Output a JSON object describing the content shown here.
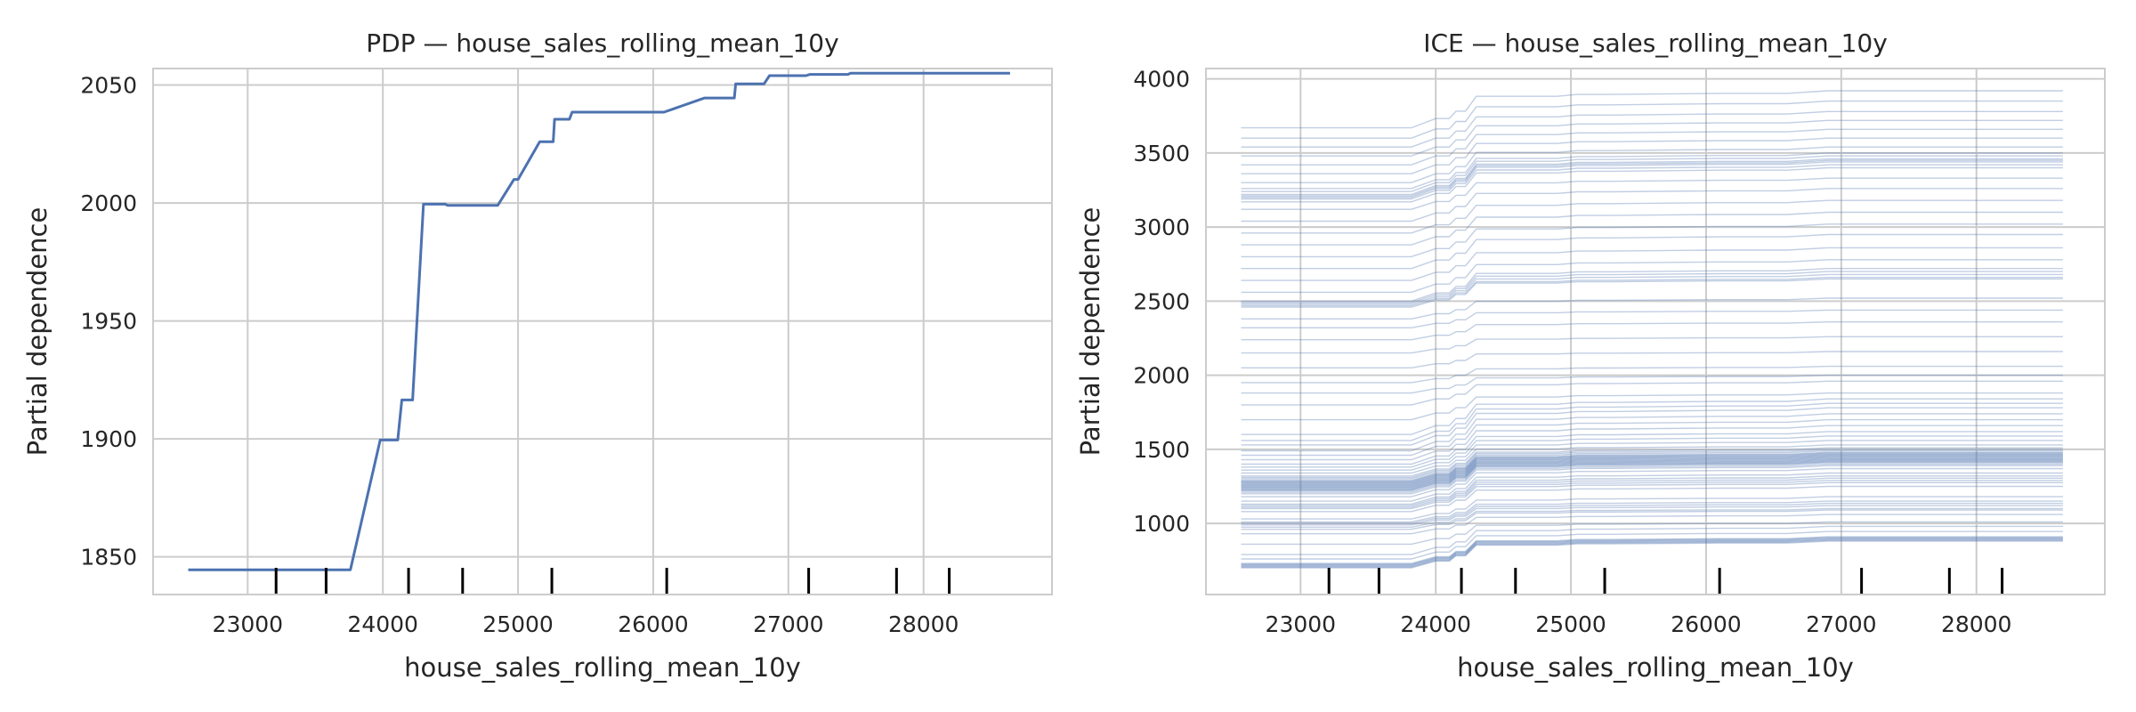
{
  "chart_data": [
    {
      "type": "line",
      "title": "PDP — house_sales_rolling_mean_10y",
      "xlabel": "house_sales_rolling_mean_10y",
      "ylabel": "Partial dependence",
      "xlim": [
        22300,
        28950
      ],
      "ylim": [
        1834,
        2057
      ],
      "x_ticks": [
        23000,
        24000,
        25000,
        26000,
        27000,
        28000
      ],
      "y_ticks": [
        1850,
        1900,
        1950,
        2000,
        2050
      ],
      "grid": true,
      "line_color": "#4c72b0",
      "series": [
        {
          "points": [
            [
              22560,
              1844.5
            ],
            [
              23760,
              1844.5
            ],
            [
              23980,
              1899.5
            ],
            [
              24110,
              1899.5
            ],
            [
              24140,
              1916.5
            ],
            [
              24220,
              1916.5
            ],
            [
              24300,
              1999.5
            ],
            [
              24460,
              1999.5
            ],
            [
              24480,
              1999
            ],
            [
              24850,
              1999
            ],
            [
              24970,
              2010
            ],
            [
              25000,
              2010
            ],
            [
              25160,
              2026
            ],
            [
              25260,
              2026
            ],
            [
              25270,
              2035.5
            ],
            [
              25380,
              2035.5
            ],
            [
              25400,
              2038.5
            ],
            [
              26080,
              2038.5
            ],
            [
              26380,
              2044.5
            ],
            [
              26600,
              2044.5
            ],
            [
              26610,
              2050.5
            ],
            [
              26820,
              2050.5
            ],
            [
              26860,
              2054
            ],
            [
              27130,
              2054
            ],
            [
              27160,
              2054.5
            ],
            [
              27440,
              2054.5
            ],
            [
              27460,
              2055
            ],
            [
              28640,
              2055
            ]
          ]
        }
      ],
      "rug": [
        23210,
        23580,
        24190,
        24590,
        25250,
        26100,
        27150,
        27800,
        28190
      ]
    },
    {
      "type": "line",
      "title": "ICE — house_sales_rolling_mean_10y",
      "xlabel": "house_sales_rolling_mean_10y",
      "ylabel": "Partial dependence",
      "xlim": [
        22300,
        28950
      ],
      "ylim": [
        520,
        4070
      ],
      "x_ticks": [
        23000,
        24000,
        25000,
        26000,
        27000,
        28000
      ],
      "y_ticks": [
        1000,
        1500,
        2000,
        2500,
        3000,
        3500,
        4000
      ],
      "grid": true,
      "line_color": "#4c72b0",
      "x_grid_points": [
        22560,
        23820,
        24000,
        24100,
        24150,
        24220,
        24300,
        24900,
        25050,
        25300,
        26100,
        26600,
        26900,
        27400,
        28640
      ],
      "ice_curves": [
        {
          "start": 700,
          "end": 880
        },
        {
          "start": 705,
          "end": 885
        },
        {
          "start": 710,
          "end": 890
        },
        {
          "start": 715,
          "end": 895
        },
        {
          "start": 720,
          "end": 900
        },
        {
          "start": 725,
          "end": 905
        },
        {
          "start": 730,
          "end": 910
        },
        {
          "start": 760,
          "end": 945
        },
        {
          "start": 790,
          "end": 980
        },
        {
          "start": 860,
          "end": 1010
        },
        {
          "start": 930,
          "end": 1060
        },
        {
          "start": 960,
          "end": 1090
        },
        {
          "start": 975,
          "end": 1100
        },
        {
          "start": 990,
          "end": 1120
        },
        {
          "start": 1000,
          "end": 1135
        },
        {
          "start": 1010,
          "end": 1150
        },
        {
          "start": 1030,
          "end": 1180
        },
        {
          "start": 1080,
          "end": 1250
        },
        {
          "start": 1100,
          "end": 1275
        },
        {
          "start": 1110,
          "end": 1290
        },
        {
          "start": 1120,
          "end": 1305
        },
        {
          "start": 1130,
          "end": 1320
        },
        {
          "start": 1150,
          "end": 1340
        },
        {
          "start": 1180,
          "end": 1370
        },
        {
          "start": 1200,
          "end": 1390
        },
        {
          "start": 1210,
          "end": 1400
        },
        {
          "start": 1220,
          "end": 1410
        },
        {
          "start": 1225,
          "end": 1415
        },
        {
          "start": 1230,
          "end": 1420
        },
        {
          "start": 1235,
          "end": 1425
        },
        {
          "start": 1240,
          "end": 1430
        },
        {
          "start": 1245,
          "end": 1435
        },
        {
          "start": 1250,
          "end": 1440
        },
        {
          "start": 1255,
          "end": 1445
        },
        {
          "start": 1260,
          "end": 1450
        },
        {
          "start": 1265,
          "end": 1455
        },
        {
          "start": 1270,
          "end": 1460
        },
        {
          "start": 1275,
          "end": 1465
        },
        {
          "start": 1280,
          "end": 1470
        },
        {
          "start": 1285,
          "end": 1475
        },
        {
          "start": 1290,
          "end": 1480
        },
        {
          "start": 1300,
          "end": 1490
        },
        {
          "start": 1310,
          "end": 1500
        },
        {
          "start": 1320,
          "end": 1510
        },
        {
          "start": 1340,
          "end": 1530
        },
        {
          "start": 1360,
          "end": 1560
        },
        {
          "start": 1380,
          "end": 1590
        },
        {
          "start": 1400,
          "end": 1620
        },
        {
          "start": 1430,
          "end": 1660
        },
        {
          "start": 1460,
          "end": 1700
        },
        {
          "start": 1490,
          "end": 1740
        },
        {
          "start": 1530,
          "end": 1780
        },
        {
          "start": 1560,
          "end": 1810
        },
        {
          "start": 1600,
          "end": 1840
        },
        {
          "start": 1700,
          "end": 1880
        },
        {
          "start": 1800,
          "end": 1960
        },
        {
          "start": 1880,
          "end": 2000
        },
        {
          "start": 1950,
          "end": 2060
        },
        {
          "start": 2050,
          "end": 2160
        },
        {
          "start": 2150,
          "end": 2260
        },
        {
          "start": 2240,
          "end": 2360
        },
        {
          "start": 2320,
          "end": 2440
        },
        {
          "start": 2380,
          "end": 2520
        },
        {
          "start": 2460,
          "end": 2650
        },
        {
          "start": 2470,
          "end": 2660
        },
        {
          "start": 2480,
          "end": 2680
        },
        {
          "start": 2490,
          "end": 2700
        },
        {
          "start": 2500,
          "end": 2720
        },
        {
          "start": 2560,
          "end": 2780
        },
        {
          "start": 2640,
          "end": 2860
        },
        {
          "start": 2720,
          "end": 2950
        },
        {
          "start": 2800,
          "end": 3020
        },
        {
          "start": 2880,
          "end": 3100
        },
        {
          "start": 2960,
          "end": 3180
        },
        {
          "start": 3040,
          "end": 3260
        },
        {
          "start": 3120,
          "end": 3330
        },
        {
          "start": 3170,
          "end": 3400
        },
        {
          "start": 3190,
          "end": 3420
        },
        {
          "start": 3200,
          "end": 3440
        },
        {
          "start": 3210,
          "end": 3450
        },
        {
          "start": 3220,
          "end": 3460
        },
        {
          "start": 3240,
          "end": 3480
        },
        {
          "start": 3260,
          "end": 3500
        },
        {
          "start": 3300,
          "end": 3540
        },
        {
          "start": 3360,
          "end": 3600
        },
        {
          "start": 3420,
          "end": 3660
        },
        {
          "start": 3480,
          "end": 3720
        },
        {
          "start": 3540,
          "end": 3780
        },
        {
          "start": 3600,
          "end": 3850
        },
        {
          "start": 3670,
          "end": 3920
        }
      ],
      "rug": [
        23210,
        23580,
        24190,
        24590,
        25250,
        26100,
        27150,
        27800,
        28190
      ]
    }
  ]
}
